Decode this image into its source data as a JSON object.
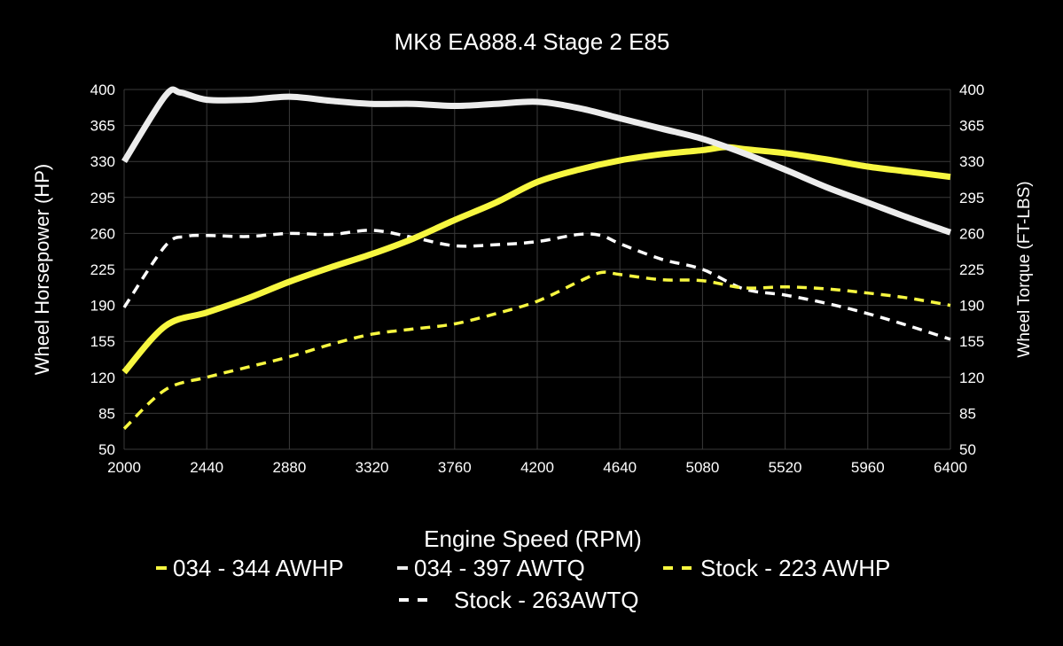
{
  "chart_data": {
    "type": "line",
    "title": "MK8 EA888.4 Stage 2 E85",
    "xlabel": "Engine Speed (RPM)",
    "ylabel": "Wheel Horsepower (HP)",
    "y2label": "Wheel Torque (FT-LBS)",
    "xlim": [
      2000,
      6400
    ],
    "ylim": [
      50,
      400
    ],
    "y2lim": [
      50,
      400
    ],
    "xticks": [
      "2000",
      "2440",
      "2880",
      "3320",
      "3760",
      "4200",
      "4640",
      "5080",
      "5520",
      "5960",
      "6400"
    ],
    "yticks": [
      "400",
      "365",
      "330",
      "295",
      "260",
      "225",
      "190",
      "155",
      "120",
      "85",
      "50"
    ],
    "grid": true,
    "legend_placement": "bottom",
    "colors": {
      "yellow": "#f7f740",
      "white": "#ececec",
      "grid": "#3a3a3a",
      "background": "#000000"
    },
    "series": [
      {
        "name": "034 - 344 AWHP",
        "color": "#f7f740",
        "style": "solid",
        "axis": "left",
        "x": [
          2000,
          2220,
          2440,
          2660,
          2880,
          3100,
          3320,
          3540,
          3760,
          3980,
          4200,
          4420,
          4640,
          4860,
          5080,
          5200,
          5300,
          5520,
          5740,
          5960,
          6180,
          6400
        ],
        "y": [
          125,
          170,
          183,
          197,
          213,
          227,
          240,
          255,
          273,
          290,
          310,
          322,
          331,
          337,
          341,
          344,
          342,
          338,
          332,
          325,
          320,
          315
        ]
      },
      {
        "name": "034 - 397 AWTQ",
        "color": "#ececec",
        "style": "solid",
        "axis": "right",
        "x": [
          2000,
          2220,
          2300,
          2440,
          2660,
          2880,
          3100,
          3320,
          3540,
          3760,
          3980,
          4200,
          4420,
          4640,
          4860,
          5080,
          5300,
          5520,
          5740,
          5960,
          6180,
          6400
        ],
        "y": [
          330,
          394,
          397,
          390,
          390,
          393,
          389,
          386,
          386,
          384,
          386,
          388,
          382,
          372,
          362,
          352,
          338,
          322,
          305,
          290,
          275,
          261
        ]
      },
      {
        "name": "Stock - 223 AWHP",
        "color": "#f7f740",
        "style": "dashed",
        "axis": "left",
        "x": [
          2000,
          2220,
          2440,
          2660,
          2880,
          3100,
          3320,
          3540,
          3760,
          3980,
          4200,
          4420,
          4540,
          4640,
          4860,
          5080,
          5300,
          5520,
          5740,
          5960,
          6180,
          6400
        ],
        "y": [
          70,
          108,
          120,
          130,
          140,
          152,
          162,
          167,
          172,
          182,
          194,
          213,
          222,
          220,
          215,
          214,
          207,
          208,
          206,
          202,
          197,
          190
        ]
      },
      {
        "name": "Stock - 263AWTQ",
        "color": "#ffffff",
        "style": "dashed",
        "axis": "right",
        "x": [
          2000,
          2220,
          2330,
          2440,
          2660,
          2880,
          3100,
          3320,
          3540,
          3760,
          3980,
          4200,
          4420,
          4540,
          4640,
          4860,
          5080,
          5300,
          5520,
          5740,
          5960,
          6180,
          6400
        ],
        "y": [
          188,
          248,
          257,
          258,
          257,
          260,
          259,
          263,
          256,
          248,
          249,
          252,
          259,
          258,
          250,
          235,
          225,
          206,
          200,
          192,
          182,
          170,
          157
        ]
      }
    ]
  }
}
